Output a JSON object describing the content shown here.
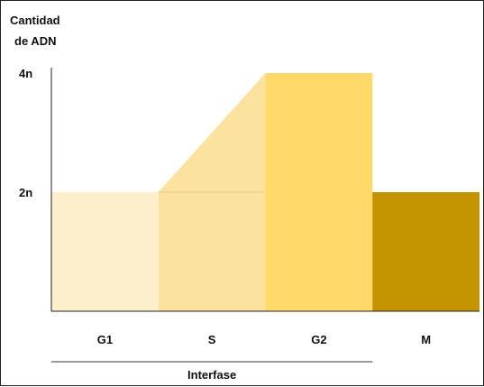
{
  "chart_data": {
    "type": "area",
    "title": "",
    "ylabel_lines": [
      "Cantidad",
      "de ADN"
    ],
    "y_ticks": [
      {
        "label": "4n",
        "value": 4
      },
      {
        "label": "2n",
        "value": 2
      }
    ],
    "ylim": [
      0,
      4
    ],
    "phases": [
      {
        "label": "G1",
        "start": 0,
        "end": 1,
        "value_start": 2,
        "value_end": 2,
        "color": "#FDEFCB"
      },
      {
        "label": "S",
        "start": 1,
        "end": 2,
        "value_start": 2,
        "value_end": 4,
        "color": "#FBE29E"
      },
      {
        "label": "G2",
        "start": 2,
        "end": 3,
        "value_start": 4,
        "value_end": 4,
        "color": "#FFD96A"
      },
      {
        "label": "M",
        "start": 3,
        "end": 4,
        "value_start": 2,
        "value_end": 2,
        "color": "#C49500"
      }
    ],
    "group": {
      "label": "Interfase",
      "start": 0,
      "end": 3
    },
    "grid": false,
    "legend": "none"
  }
}
